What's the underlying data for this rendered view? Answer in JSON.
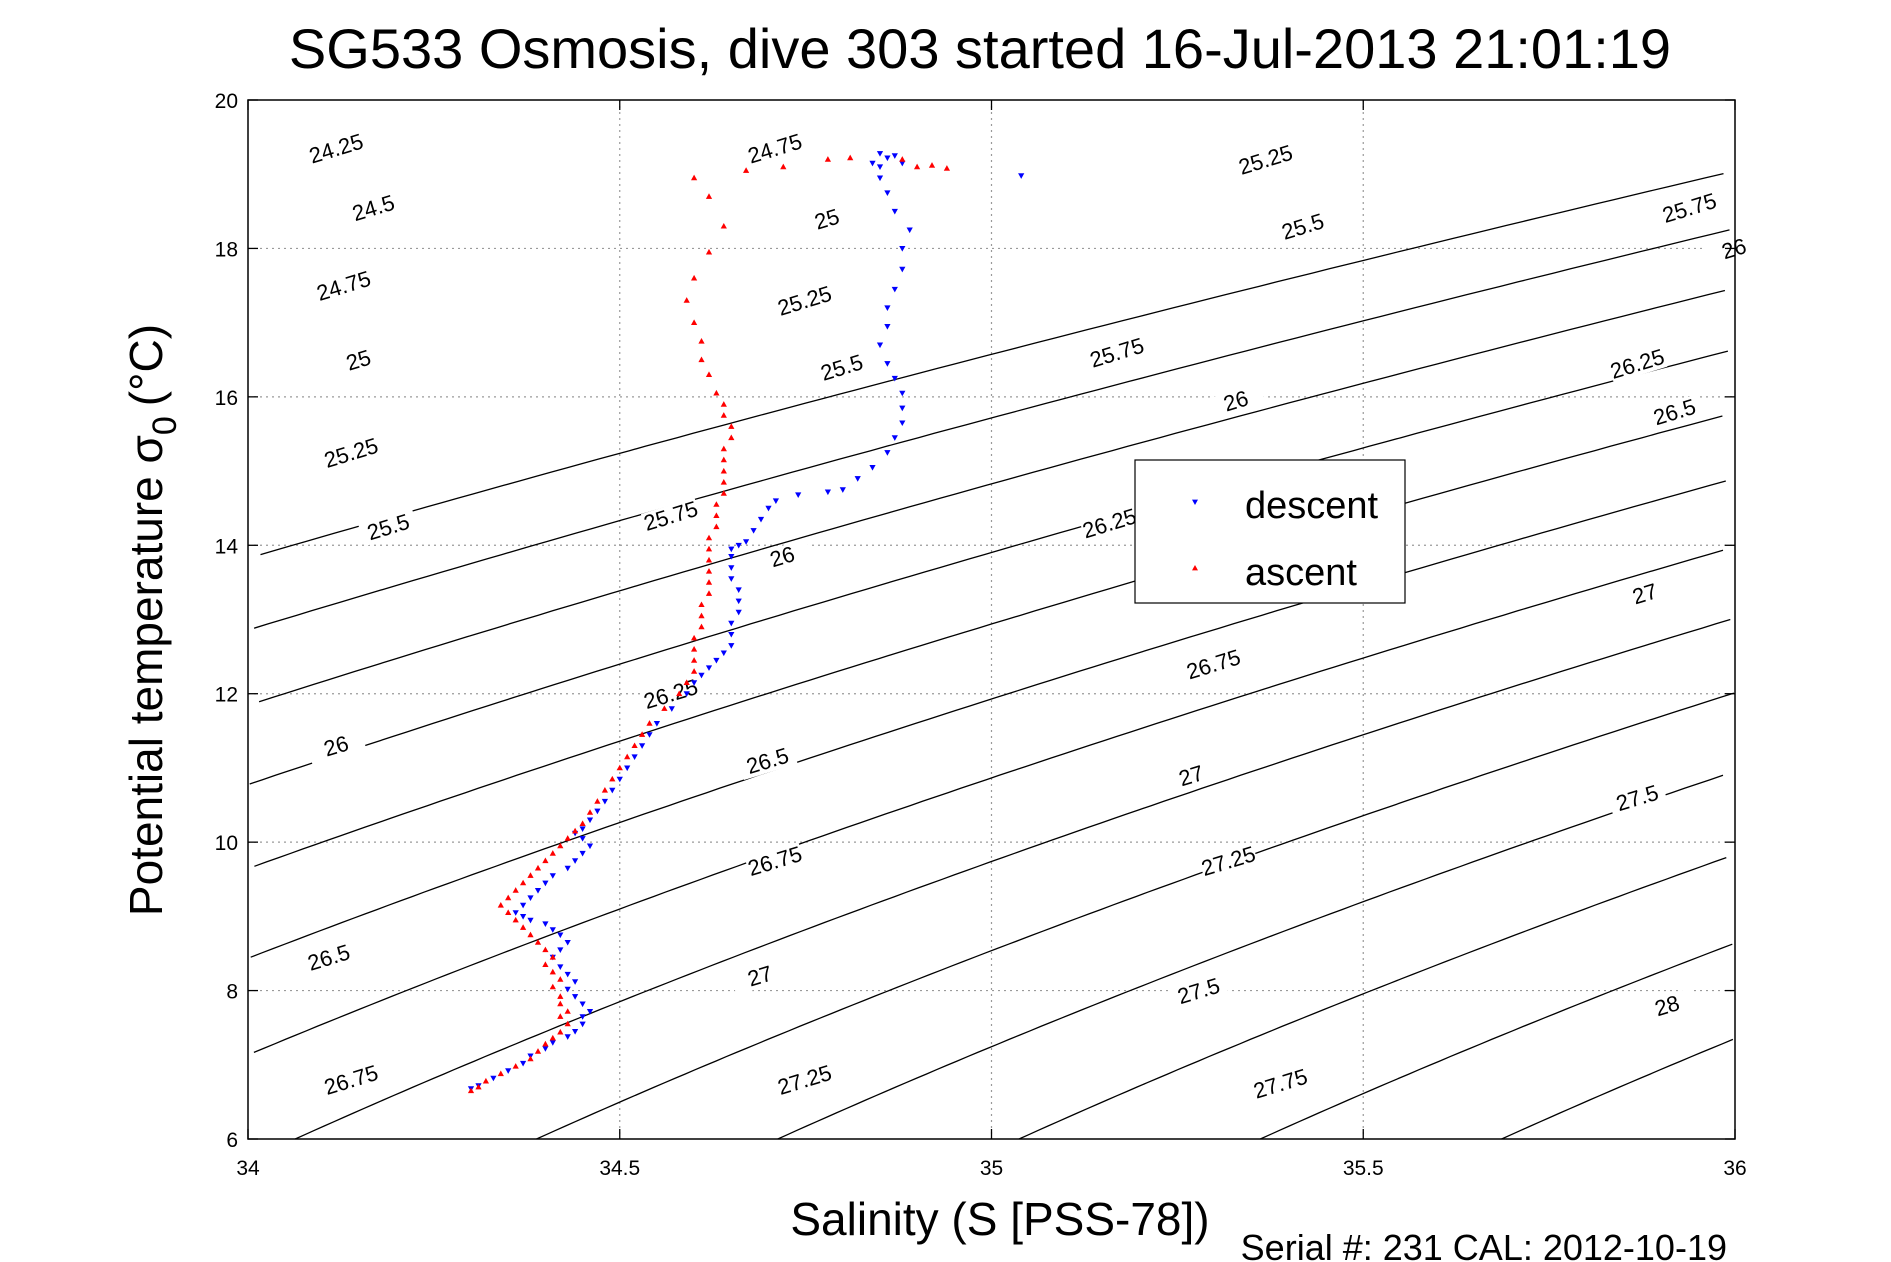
{
  "chart_data": {
    "type": "scatter",
    "title": "SG533 Osmosis, dive 303 started 16-Jul-2013 21:01:19",
    "xlabel": "Salinity (S [PSS-78])",
    "ylabel_main": "Potential temperature σ",
    "ylabel_sub": "0",
    "ylabel_unit": "(°C)",
    "xlim": [
      34,
      36
    ],
    "ylim": [
      6,
      20
    ],
    "x_ticks": [
      34,
      34.5,
      35,
      35.5,
      36
    ],
    "x_tick_labels": [
      "34",
      "34.5",
      "35",
      "35.5",
      "36"
    ],
    "y_ticks": [
      6,
      8,
      10,
      12,
      14,
      16,
      18,
      20
    ],
    "y_tick_labels": [
      "6",
      "8",
      "10",
      "12",
      "14",
      "16",
      "18",
      "20"
    ],
    "grid": true,
    "legend": "center-right",
    "footer": "Serial #: 231  CAL: 2012-10-19",
    "contours": {
      "levels": [
        24.25,
        24.5,
        24.75,
        25,
        25.25,
        25.5,
        25.75,
        26,
        26.25,
        26.5,
        26.75,
        27,
        27.25,
        27.5,
        27.75,
        28
      ],
      "labels": [
        {
          "text": "24.25",
          "level": 24.25,
          "x": 34.12,
          "y": 19.3
        },
        {
          "text": "24.5",
          "level": 24.5,
          "x": 34.17,
          "y": 18.5
        },
        {
          "text": "24.75",
          "level": 24.75,
          "x": 34.13,
          "y": 17.45
        },
        {
          "text": "25",
          "level": 25,
          "x": 34.15,
          "y": 16.45
        },
        {
          "text": "25.25",
          "level": 25.25,
          "x": 34.14,
          "y": 15.2
        },
        {
          "text": "25.5",
          "level": 25.5,
          "x": 34.19,
          "y": 14.2
        },
        {
          "text": "26",
          "level": 26,
          "x": 34.12,
          "y": 11.25
        },
        {
          "text": "26.5",
          "level": 26.5,
          "x": 34.11,
          "y": 8.4
        },
        {
          "text": "26.75",
          "level": 26.75,
          "x": 34.14,
          "y": 6.75
        },
        {
          "text": "24.75",
          "level": 24.75,
          "x": 34.71,
          "y": 19.3
        },
        {
          "text": "25",
          "level": 25,
          "x": 34.78,
          "y": 18.35
        },
        {
          "text": "25.25",
          "level": 25.25,
          "x": 34.75,
          "y": 17.25
        },
        {
          "text": "25.5",
          "level": 25.5,
          "x": 34.8,
          "y": 16.35
        },
        {
          "text": "25.75",
          "level": 25.75,
          "x": 34.57,
          "y": 14.35
        },
        {
          "text": "26",
          "level": 26,
          "x": 34.72,
          "y": 13.8
        },
        {
          "text": "26.25",
          "level": 26.25,
          "x": 34.57,
          "y": 11.95
        },
        {
          "text": "26.5",
          "level": 26.5,
          "x": 34.7,
          "y": 11.05
        },
        {
          "text": "26.75",
          "level": 26.75,
          "x": 34.71,
          "y": 9.7
        },
        {
          "text": "27",
          "level": 27,
          "x": 34.69,
          "y": 8.15
        },
        {
          "text": "27.25",
          "level": 27.25,
          "x": 34.75,
          "y": 6.75
        },
        {
          "text": "25.25",
          "level": 25.25,
          "x": 35.37,
          "y": 19.15
        },
        {
          "text": "25.5",
          "level": 25.5,
          "x": 35.42,
          "y": 18.25
        },
        {
          "text": "25.75",
          "level": 25.75,
          "x": 35.17,
          "y": 16.55
        },
        {
          "text": "26",
          "level": 26,
          "x": 35.33,
          "y": 15.9
        },
        {
          "text": "26.25",
          "level": 26.25,
          "x": 35.16,
          "y": 14.25
        },
        {
          "text": "26.75",
          "level": 26.75,
          "x": 35.3,
          "y": 12.35
        },
        {
          "text": "27",
          "level": 27,
          "x": 35.27,
          "y": 10.85
        },
        {
          "text": "27.25",
          "level": 27.25,
          "x": 35.32,
          "y": 9.7
        },
        {
          "text": "27.5",
          "level": 27.5,
          "x": 35.28,
          "y": 7.95
        },
        {
          "text": "27.75",
          "level": 27.75,
          "x": 35.39,
          "y": 6.7
        },
        {
          "text": "25.75",
          "level": 25.75,
          "x": 35.94,
          "y": 18.5
        },
        {
          "text": "26",
          "level": 26,
          "x": 36.0,
          "y": 17.95
        },
        {
          "text": "26.25",
          "level": 26.25,
          "x": 35.87,
          "y": 16.4
        },
        {
          "text": "26.5",
          "level": 26.5,
          "x": 35.92,
          "y": 15.75
        },
        {
          "text": "27",
          "level": 27,
          "x": 35.88,
          "y": 13.3
        },
        {
          "text": "27.5",
          "level": 27.5,
          "x": 35.87,
          "y": 10.55
        },
        {
          "text": "28",
          "level": 28,
          "x": 35.91,
          "y": 7.75
        }
      ]
    },
    "series": [
      {
        "name": "descent",
        "color": "#0000ff",
        "marker": "triangle-down",
        "points": [
          [
            34.3,
            6.68
          ],
          [
            34.31,
            6.72
          ],
          [
            34.33,
            6.82
          ],
          [
            34.35,
            6.92
          ],
          [
            34.37,
            7.02
          ],
          [
            34.38,
            7.12
          ],
          [
            34.4,
            7.22
          ],
          [
            34.41,
            7.3
          ],
          [
            34.43,
            7.38
          ],
          [
            34.44,
            7.45
          ],
          [
            34.45,
            7.55
          ],
          [
            34.45,
            7.65
          ],
          [
            34.46,
            7.72
          ],
          [
            34.45,
            7.82
          ],
          [
            34.44,
            7.92
          ],
          [
            34.43,
            8.02
          ],
          [
            34.44,
            8.12
          ],
          [
            34.43,
            8.22
          ],
          [
            34.42,
            8.32
          ],
          [
            34.41,
            8.45
          ],
          [
            34.42,
            8.55
          ],
          [
            34.43,
            8.65
          ],
          [
            34.42,
            8.75
          ],
          [
            34.41,
            8.82
          ],
          [
            34.4,
            8.9
          ],
          [
            34.38,
            8.95
          ],
          [
            34.37,
            9.0
          ],
          [
            34.36,
            9.05
          ],
          [
            34.37,
            9.15
          ],
          [
            34.38,
            9.25
          ],
          [
            34.39,
            9.35
          ],
          [
            34.4,
            9.45
          ],
          [
            34.41,
            9.55
          ],
          [
            34.43,
            9.65
          ],
          [
            34.44,
            9.75
          ],
          [
            34.45,
            9.85
          ],
          [
            34.46,
            9.95
          ],
          [
            34.45,
            10.05
          ],
          [
            34.44,
            10.12
          ],
          [
            34.45,
            10.18
          ],
          [
            34.46,
            10.3
          ],
          [
            34.47,
            10.42
          ],
          [
            34.48,
            10.55
          ],
          [
            34.49,
            10.7
          ],
          [
            34.5,
            10.85
          ],
          [
            34.51,
            11.0
          ],
          [
            34.52,
            11.15
          ],
          [
            34.53,
            11.3
          ],
          [
            34.54,
            11.45
          ],
          [
            34.55,
            11.6
          ],
          [
            34.57,
            11.8
          ],
          [
            34.59,
            12.0
          ],
          [
            34.6,
            12.15
          ],
          [
            34.61,
            12.25
          ],
          [
            34.62,
            12.35
          ],
          [
            34.63,
            12.45
          ],
          [
            34.64,
            12.55
          ],
          [
            34.65,
            12.65
          ],
          [
            34.65,
            12.8
          ],
          [
            34.65,
            12.95
          ],
          [
            34.66,
            13.1
          ],
          [
            34.66,
            13.25
          ],
          [
            34.66,
            13.4
          ],
          [
            34.65,
            13.55
          ],
          [
            34.65,
            13.7
          ],
          [
            34.65,
            13.85
          ],
          [
            34.65,
            13.95
          ],
          [
            34.66,
            14.0
          ],
          [
            34.67,
            14.05
          ],
          [
            34.68,
            14.2
          ],
          [
            34.69,
            14.35
          ],
          [
            34.7,
            14.5
          ],
          [
            34.71,
            14.6
          ],
          [
            34.74,
            14.68
          ],
          [
            34.78,
            14.72
          ],
          [
            34.8,
            14.75
          ],
          [
            34.82,
            14.9
          ],
          [
            34.84,
            15.05
          ],
          [
            34.86,
            15.25
          ],
          [
            34.87,
            15.45
          ],
          [
            34.88,
            15.65
          ],
          [
            34.88,
            15.85
          ],
          [
            34.88,
            16.05
          ],
          [
            34.87,
            16.25
          ],
          [
            34.86,
            16.45
          ],
          [
            34.85,
            16.7
          ],
          [
            34.86,
            16.95
          ],
          [
            34.86,
            17.2
          ],
          [
            34.87,
            17.45
          ],
          [
            34.88,
            17.72
          ],
          [
            34.88,
            18.0
          ],
          [
            34.89,
            18.25
          ],
          [
            34.87,
            18.5
          ],
          [
            34.86,
            18.75
          ],
          [
            34.85,
            18.95
          ],
          [
            34.85,
            19.1
          ],
          [
            34.86,
            19.22
          ],
          [
            34.85,
            19.28
          ],
          [
            34.87,
            19.25
          ],
          [
            34.88,
            19.15
          ],
          [
            34.84,
            19.15
          ],
          [
            35.04,
            18.98
          ]
        ]
      },
      {
        "name": "ascent",
        "color": "#ff0000",
        "marker": "triangle-up",
        "points": [
          [
            34.3,
            6.65
          ],
          [
            34.31,
            6.7
          ],
          [
            34.32,
            6.78
          ],
          [
            34.34,
            6.88
          ],
          [
            34.36,
            6.98
          ],
          [
            34.38,
            7.08
          ],
          [
            34.39,
            7.18
          ],
          [
            34.4,
            7.28
          ],
          [
            34.41,
            7.36
          ],
          [
            34.42,
            7.44
          ],
          [
            34.43,
            7.55
          ],
          [
            34.42,
            7.65
          ],
          [
            34.43,
            7.72
          ],
          [
            34.42,
            7.82
          ],
          [
            34.42,
            7.92
          ],
          [
            34.41,
            8.05
          ],
          [
            34.42,
            8.15
          ],
          [
            34.41,
            8.25
          ],
          [
            34.4,
            8.35
          ],
          [
            34.41,
            8.45
          ],
          [
            34.4,
            8.55
          ],
          [
            34.39,
            8.65
          ],
          [
            34.38,
            8.75
          ],
          [
            34.37,
            8.85
          ],
          [
            34.36,
            8.95
          ],
          [
            34.35,
            9.05
          ],
          [
            34.34,
            9.15
          ],
          [
            34.35,
            9.25
          ],
          [
            34.36,
            9.35
          ],
          [
            34.37,
            9.45
          ],
          [
            34.38,
            9.55
          ],
          [
            34.39,
            9.65
          ],
          [
            34.4,
            9.75
          ],
          [
            34.41,
            9.85
          ],
          [
            34.42,
            9.95
          ],
          [
            34.43,
            10.05
          ],
          [
            34.44,
            10.15
          ],
          [
            34.45,
            10.25
          ],
          [
            34.46,
            10.4
          ],
          [
            34.47,
            10.55
          ],
          [
            34.48,
            10.7
          ],
          [
            34.49,
            10.85
          ],
          [
            34.5,
            11.0
          ],
          [
            34.51,
            11.15
          ],
          [
            34.52,
            11.3
          ],
          [
            34.53,
            11.45
          ],
          [
            34.54,
            11.6
          ],
          [
            34.56,
            11.8
          ],
          [
            34.58,
            12.0
          ],
          [
            34.59,
            12.15
          ],
          [
            34.6,
            12.3
          ],
          [
            34.6,
            12.45
          ],
          [
            34.6,
            12.6
          ],
          [
            34.6,
            12.75
          ],
          [
            34.61,
            12.9
          ],
          [
            34.61,
            13.05
          ],
          [
            34.61,
            13.2
          ],
          [
            34.62,
            13.35
          ],
          [
            34.62,
            13.5
          ],
          [
            34.62,
            13.65
          ],
          [
            34.62,
            13.8
          ],
          [
            34.62,
            13.95
          ],
          [
            34.62,
            14.1
          ],
          [
            34.63,
            14.25
          ],
          [
            34.63,
            14.4
          ],
          [
            34.63,
            14.55
          ],
          [
            34.64,
            14.7
          ],
          [
            34.64,
            14.85
          ],
          [
            34.64,
            15.0
          ],
          [
            34.64,
            15.15
          ],
          [
            34.64,
            15.3
          ],
          [
            34.65,
            15.45
          ],
          [
            34.65,
            15.6
          ],
          [
            34.64,
            15.75
          ],
          [
            34.64,
            15.9
          ],
          [
            34.63,
            16.05
          ],
          [
            34.62,
            16.3
          ],
          [
            34.61,
            16.5
          ],
          [
            34.61,
            16.75
          ],
          [
            34.6,
            17.0
          ],
          [
            34.59,
            17.3
          ],
          [
            34.6,
            17.6
          ],
          [
            34.62,
            17.95
          ],
          [
            34.64,
            18.3
          ],
          [
            34.62,
            18.7
          ],
          [
            34.6,
            18.95
          ],
          [
            34.67,
            19.05
          ],
          [
            34.72,
            19.1
          ],
          [
            34.78,
            19.2
          ],
          [
            34.81,
            19.22
          ],
          [
            34.88,
            19.2
          ],
          [
            34.92,
            19.12
          ],
          [
            34.94,
            19.08
          ],
          [
            34.9,
            19.1
          ]
        ]
      }
    ]
  }
}
